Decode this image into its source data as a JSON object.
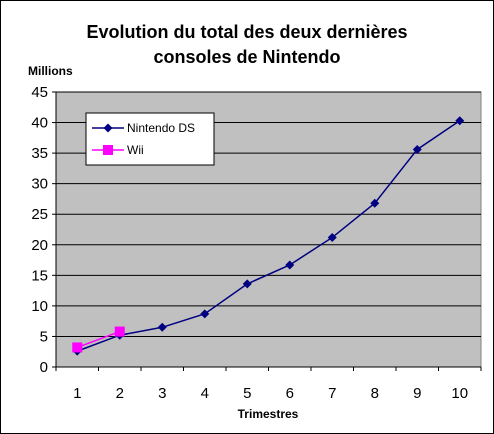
{
  "chart_data": {
    "type": "line",
    "title": "Evolution du total des deux dernières consoles de Nintendo",
    "title_lines": [
      "Evolution du total des deux dernières",
      "consoles de Nintendo"
    ],
    "ylabel": "Millions",
    "xlabel": "Trimestres",
    "x": [
      1,
      2,
      3,
      4,
      5,
      6,
      7,
      8,
      9,
      10
    ],
    "ylim": [
      0,
      45
    ],
    "yticks": [
      0,
      5,
      10,
      15,
      20,
      25,
      30,
      35,
      40,
      45
    ],
    "grid": "horizontal",
    "background": "#C0C0C0",
    "legend_position": "top-left",
    "series": [
      {
        "name": "Nintendo DS",
        "color": "#000080",
        "marker": "diamond",
        "points": [
          {
            "x": 1,
            "y": 2.6
          },
          {
            "x": 2,
            "y": 5.2
          },
          {
            "x": 3,
            "y": 6.5
          },
          {
            "x": 4,
            "y": 8.7
          },
          {
            "x": 5,
            "y": 13.6
          },
          {
            "x": 6,
            "y": 16.7
          },
          {
            "x": 7,
            "y": 21.2
          },
          {
            "x": 8,
            "y": 26.8
          },
          {
            "x": 9,
            "y": 35.6
          },
          {
            "x": 10,
            "y": 40.3
          }
        ]
      },
      {
        "name": "Wii",
        "color": "#FF00FF",
        "marker": "square",
        "points": [
          {
            "x": 1,
            "y": 3.2
          },
          {
            "x": 2,
            "y": 5.8
          }
        ]
      }
    ]
  }
}
